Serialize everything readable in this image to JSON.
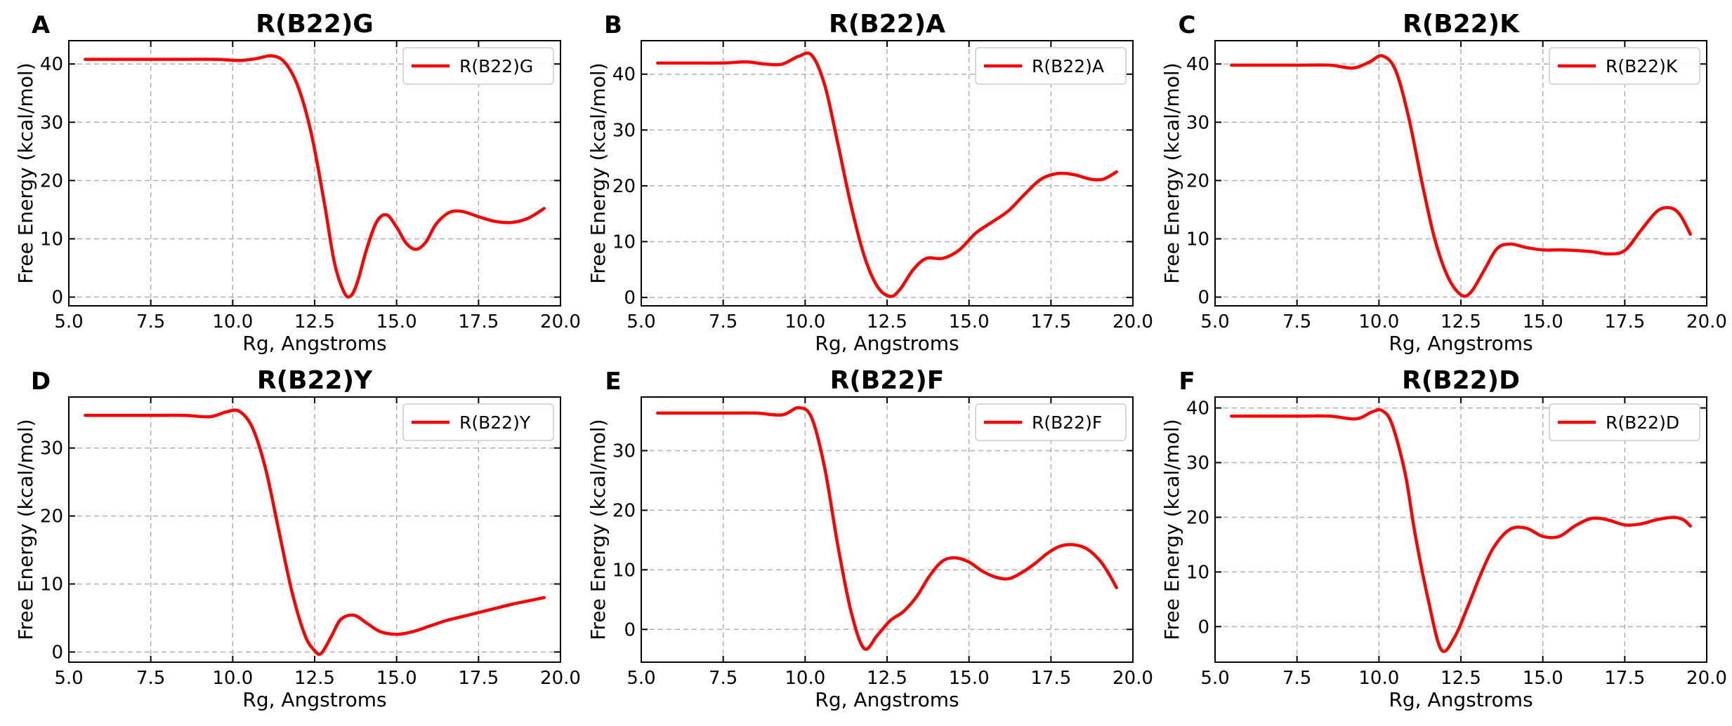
{
  "figure": {
    "style": {
      "line_color": "#ff0000",
      "grid_color": "#b0b0b0",
      "axis_color": "#000000"
    }
  },
  "chart_data": [
    {
      "panel_letter": "A",
      "type": "line",
      "title": "R(B22)G",
      "xlabel": "Rg, Angstroms",
      "ylabel": "Free Energy (kcal/mol)",
      "xlim": [
        5.0,
        20.0
      ],
      "ylim": [
        -1.5,
        44
      ],
      "xticks": [
        5.0,
        7.5,
        10.0,
        12.5,
        15.0,
        17.5,
        20.0
      ],
      "xtick_labels": [
        "5.0",
        "7.5",
        "10.0",
        "12.5",
        "15.0",
        "17.5",
        "20.0"
      ],
      "yticks": [
        0,
        10,
        20,
        30,
        40
      ],
      "ytick_labels": [
        "0",
        "10",
        "20",
        "30",
        "40"
      ],
      "grid": true,
      "legend": "top-right",
      "series": [
        {
          "name": "R(B22)G",
          "x": [
            5.5,
            6.5,
            7.5,
            8.5,
            9.5,
            10.2,
            10.7,
            11.2,
            11.6,
            12.0,
            12.4,
            12.8,
            13.1,
            13.4,
            13.6,
            13.8,
            14.1,
            14.4,
            14.7,
            15.0,
            15.3,
            15.6,
            15.9,
            16.2,
            16.6,
            17.0,
            17.5,
            18.0,
            18.5,
            19.0,
            19.5
          ],
          "y": [
            40.8,
            40.8,
            40.8,
            40.8,
            40.8,
            40.6,
            40.9,
            41.4,
            40.2,
            36.0,
            28.0,
            16.0,
            6.0,
            0.8,
            0.2,
            2.5,
            8.5,
            13.0,
            14.1,
            12.0,
            9.2,
            8.2,
            9.5,
            12.5,
            14.5,
            14.7,
            13.8,
            13.0,
            12.8,
            13.5,
            15.2
          ]
        }
      ]
    },
    {
      "panel_letter": "B",
      "type": "line",
      "title": "R(B22)A",
      "xlabel": "Rg, Angstroms",
      "ylabel": "Free Energy (kcal/mol)",
      "xlim": [
        5.0,
        20.0
      ],
      "ylim": [
        -1.5,
        46
      ],
      "xticks": [
        5.0,
        7.5,
        10.0,
        12.5,
        15.0,
        17.5,
        20.0
      ],
      "xtick_labels": [
        "5.0",
        "7.5",
        "10.0",
        "12.5",
        "15.0",
        "17.5",
        "20.0"
      ],
      "yticks": [
        0,
        10,
        20,
        30,
        40
      ],
      "ytick_labels": [
        "0",
        "10",
        "20",
        "30",
        "40"
      ],
      "grid": true,
      "legend": "top-right",
      "series": [
        {
          "name": "R(B22)A",
          "x": [
            5.5,
            6.5,
            7.5,
            8.2,
            8.8,
            9.3,
            9.8,
            10.2,
            10.6,
            11.0,
            11.4,
            11.8,
            12.2,
            12.6,
            12.9,
            13.3,
            13.7,
            14.2,
            14.7,
            15.2,
            15.7,
            16.2,
            16.7,
            17.2,
            17.7,
            18.2,
            18.7,
            19.1,
            19.5
          ],
          "y": [
            42.0,
            42.0,
            42.0,
            42.2,
            41.8,
            41.8,
            43.2,
            43.4,
            38.0,
            27.5,
            16.5,
            7.5,
            2.0,
            0.2,
            1.5,
            5.0,
            7.0,
            7.0,
            8.5,
            11.5,
            13.5,
            15.5,
            18.5,
            21.2,
            22.2,
            22.0,
            21.2,
            21.2,
            22.5
          ]
        }
      ]
    },
    {
      "panel_letter": "C",
      "type": "line",
      "title": "R(B22)K",
      "xlabel": "Rg, Angstroms",
      "ylabel": "Free Energy (kcal/mol)",
      "xlim": [
        5.0,
        20.0
      ],
      "ylim": [
        -1.5,
        44
      ],
      "xticks": [
        5.0,
        7.5,
        10.0,
        12.5,
        15.0,
        17.5,
        20.0
      ],
      "xtick_labels": [
        "5.0",
        "7.5",
        "10.0",
        "12.5",
        "15.0",
        "17.5",
        "20.0"
      ],
      "yticks": [
        0,
        10,
        20,
        30,
        40
      ],
      "ytick_labels": [
        "0",
        "10",
        "20",
        "30",
        "40"
      ],
      "grid": true,
      "legend": "top-right",
      "series": [
        {
          "name": "R(B22)K",
          "x": [
            5.5,
            6.5,
            7.5,
            8.5,
            9.2,
            9.7,
            10.1,
            10.5,
            10.9,
            11.3,
            11.7,
            12.1,
            12.5,
            12.8,
            13.2,
            13.6,
            14.0,
            14.5,
            15.0,
            15.5,
            16.0,
            16.5,
            17.0,
            17.5,
            18.0,
            18.5,
            18.9,
            19.2,
            19.5
          ],
          "y": [
            39.8,
            39.8,
            39.8,
            39.8,
            39.3,
            40.3,
            41.4,
            39.0,
            31.0,
            20.0,
            10.0,
            3.5,
            0.4,
            0.8,
            4.5,
            8.3,
            9.1,
            8.5,
            8.1,
            8.1,
            8.0,
            7.8,
            7.4,
            8.0,
            11.5,
            14.8,
            15.3,
            14.0,
            10.8
          ]
        }
      ]
    },
    {
      "panel_letter": "D",
      "type": "line",
      "title": "R(B22)Y",
      "xlabel": "Rg, Angstroms",
      "ylabel": "Free Energy (kcal/mol)",
      "xlim": [
        5.0,
        20.0
      ],
      "ylim": [
        -1.5,
        37.5
      ],
      "xticks": [
        5.0,
        7.5,
        10.0,
        12.5,
        15.0,
        17.5,
        20.0
      ],
      "xtick_labels": [
        "5.0",
        "7.5",
        "10.0",
        "12.5",
        "15.0",
        "17.5",
        "20.0"
      ],
      "yticks": [
        0,
        10,
        20,
        30
      ],
      "ytick_labels": [
        "0",
        "10",
        "20",
        "30"
      ],
      "grid": true,
      "legend": "top-right",
      "series": [
        {
          "name": "R(B22)Y",
          "x": [
            5.5,
            6.5,
            7.5,
            8.5,
            9.3,
            9.8,
            10.2,
            10.6,
            11.0,
            11.4,
            11.8,
            12.2,
            12.5,
            12.7,
            13.0,
            13.3,
            13.7,
            14.1,
            14.5,
            15.0,
            15.5,
            16.0,
            16.5,
            17.0,
            17.5,
            18.0,
            18.5,
            19.0,
            19.5
          ],
          "y": [
            34.8,
            34.8,
            34.8,
            34.8,
            34.6,
            35.3,
            35.4,
            33.0,
            27.0,
            18.0,
            9.0,
            2.5,
            0.2,
            -0.2,
            2.2,
            4.8,
            5.4,
            4.2,
            3.0,
            2.6,
            3.0,
            3.8,
            4.6,
            5.2,
            5.8,
            6.4,
            7.0,
            7.5,
            8.0
          ]
        }
      ]
    },
    {
      "panel_letter": "E",
      "type": "line",
      "title": "R(B22)F",
      "xlabel": "Rg, Angstroms",
      "ylabel": "Free Energy (kcal/mol)",
      "xlim": [
        5.0,
        20.0
      ],
      "ylim": [
        -5.5,
        39
      ],
      "xticks": [
        5.0,
        7.5,
        10.0,
        12.5,
        15.0,
        17.5,
        20.0
      ],
      "xtick_labels": [
        "5.0",
        "7.5",
        "10.0",
        "12.5",
        "15.0",
        "17.5",
        "20.0"
      ],
      "yticks": [
        0,
        10,
        20,
        30
      ],
      "ytick_labels": [
        "0",
        "10",
        "20",
        "30"
      ],
      "grid": true,
      "legend": "top-right",
      "series": [
        {
          "name": "R(B22)F",
          "x": [
            5.5,
            6.5,
            7.5,
            8.5,
            9.3,
            9.8,
            10.2,
            10.6,
            11.0,
            11.4,
            11.8,
            12.2,
            12.6,
            13.0,
            13.4,
            13.8,
            14.2,
            14.6,
            15.0,
            15.4,
            15.8,
            16.2,
            16.6,
            17.0,
            17.4,
            17.8,
            18.2,
            18.6,
            19.0,
            19.3,
            19.5
          ],
          "y": [
            36.3,
            36.3,
            36.3,
            36.3,
            36.0,
            37.2,
            35.5,
            27.0,
            14.0,
            3.0,
            -3.2,
            -1.0,
            1.5,
            3.0,
            5.5,
            9.0,
            11.5,
            12.0,
            11.3,
            9.8,
            8.8,
            8.5,
            9.5,
            11.0,
            12.8,
            14.0,
            14.2,
            13.5,
            11.5,
            9.0,
            7.0
          ]
        }
      ]
    },
    {
      "panel_letter": "F",
      "type": "line",
      "title": "R(B22)D",
      "xlabel": "Rg, Angstroms",
      "ylabel": "Free Energy (kcal/mol)",
      "xlim": [
        5.0,
        20.0
      ],
      "ylim": [
        -6.5,
        42
      ],
      "xticks": [
        5.0,
        7.5,
        10.0,
        12.5,
        15.0,
        17.5,
        20.0
      ],
      "xtick_labels": [
        "5.0",
        "7.5",
        "10.0",
        "12.5",
        "15.0",
        "17.5",
        "20.0"
      ],
      "yticks": [
        0,
        10,
        20,
        30,
        40
      ],
      "ytick_labels": [
        "0",
        "10",
        "20",
        "30",
        "40"
      ],
      "grid": true,
      "legend": "top-right",
      "series": [
        {
          "name": "R(B22)D",
          "x": [
            5.5,
            6.5,
            7.5,
            8.5,
            9.3,
            9.8,
            10.1,
            10.4,
            10.8,
            11.1,
            11.5,
            11.9,
            12.3,
            12.7,
            13.1,
            13.5,
            14.0,
            14.5,
            15.0,
            15.5,
            16.0,
            16.5,
            17.0,
            17.5,
            18.0,
            18.5,
            19.0,
            19.3,
            19.5
          ],
          "y": [
            38.5,
            38.5,
            38.5,
            38.5,
            38.0,
            39.3,
            39.5,
            37.0,
            28.0,
            17.0,
            5.0,
            -4.2,
            -2.0,
            3.5,
            9.5,
            14.5,
            17.8,
            18.0,
            16.5,
            16.5,
            18.5,
            19.8,
            19.5,
            18.6,
            18.8,
            19.6,
            20.0,
            19.5,
            18.4
          ]
        }
      ]
    }
  ]
}
